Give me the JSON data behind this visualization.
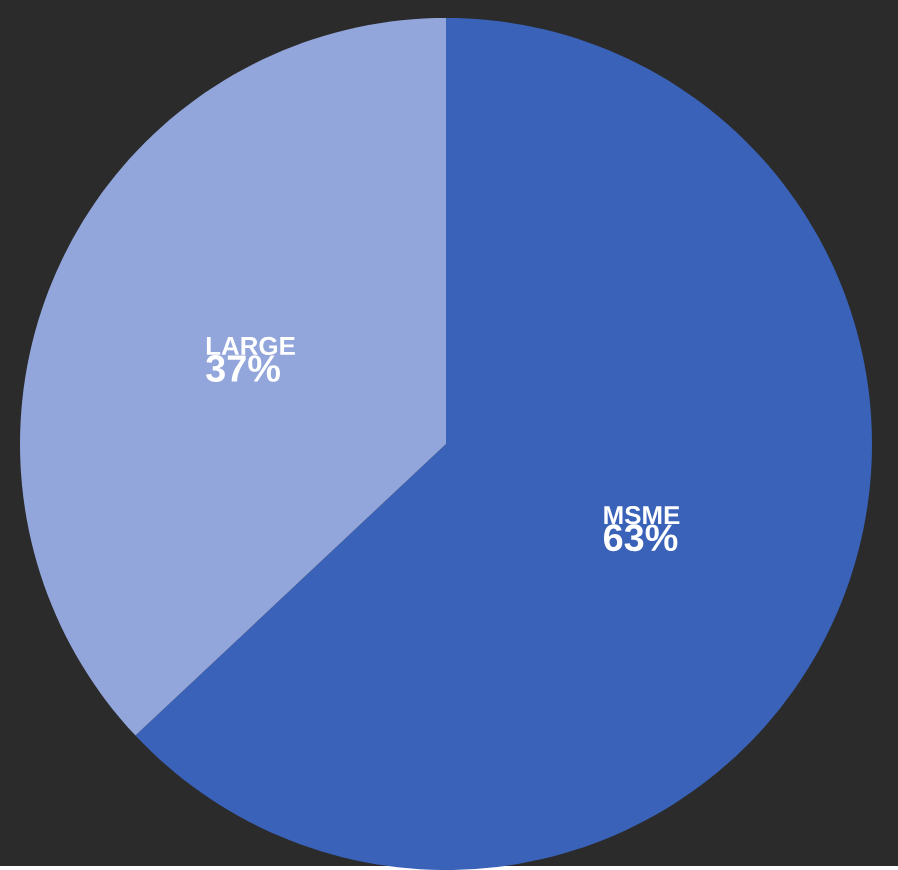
{
  "chart_data": {
    "type": "pie",
    "categories": [
      "MSME",
      "LARGE"
    ],
    "values": [
      63,
      37
    ],
    "colors": [
      "#3a62b8",
      "#93a6dc"
    ],
    "value_labels": [
      "63%",
      "37%"
    ]
  }
}
